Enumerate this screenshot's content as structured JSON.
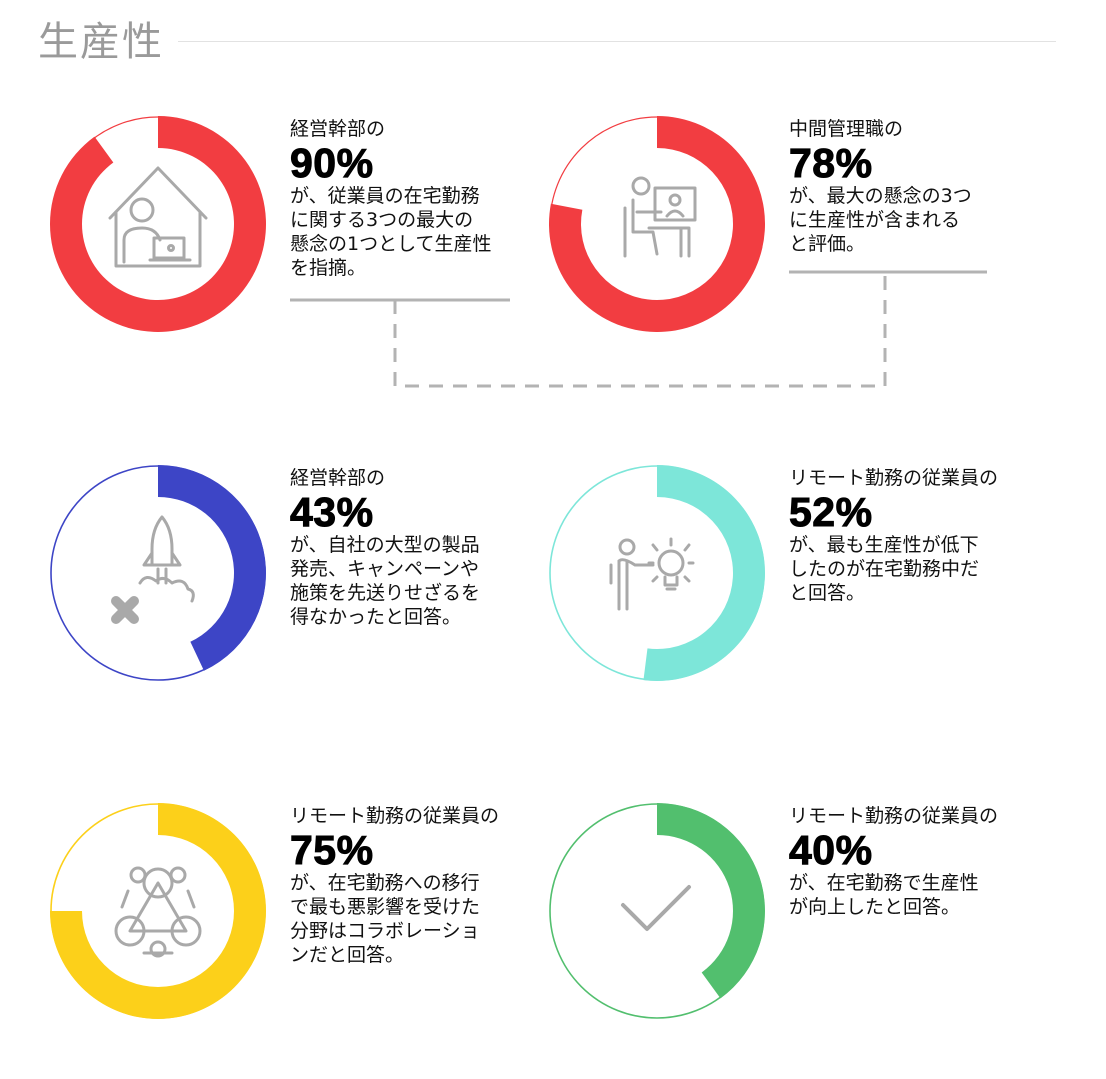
{
  "page": {
    "title": "生産性"
  },
  "chart_data": [
    {
      "type": "pie",
      "value": 90,
      "unit": "%",
      "color": "#f23d41",
      "icon": "person-working-at-home-icon",
      "subject": "経営幹部の",
      "percent_label": "90%",
      "description": [
        "が、従業員の在宅勤務",
        "に関する3つの最大の",
        "懸念の1つとして生産性",
        "を指摘。"
      ]
    },
    {
      "type": "pie",
      "value": 78,
      "unit": "%",
      "color": "#f23d41",
      "icon": "person-at-video-call-desk-icon",
      "subject": "中間管理職の",
      "percent_label": "78%",
      "description": [
        "が、最大の懸念の3つ",
        "に生産性が含まれる",
        "と評価。"
      ]
    },
    {
      "type": "pie",
      "value": 43,
      "unit": "%",
      "color": "#3d45c6",
      "icon": "rocket-launch-cancelled-icon",
      "subject": "経営幹部の",
      "percent_label": "43%",
      "description": [
        "が、自社の大型の製品",
        "発売、キャンペーンや",
        "施策を先送りせざるを",
        "得なかったと回答。"
      ]
    },
    {
      "type": "pie",
      "value": 52,
      "unit": "%",
      "color": "#7de6d9",
      "icon": "person-presenting-idea-icon",
      "subject": "リモート勤務の従業員の",
      "percent_label": "52%",
      "description": [
        "が、最も生産性が低下",
        "したのが在宅勤務中だ",
        "と回答。"
      ]
    },
    {
      "type": "pie",
      "value": 75,
      "unit": "%",
      "color": "#fcd01a",
      "icon": "team-collaboration-icon",
      "subject": "リモート勤務の従業員の",
      "percent_label": "75%",
      "description": [
        "が、在宅勤務への移行",
        "で最も悪影響を受けた",
        "分野はコラボレーショ",
        "ンだと回答。"
      ]
    },
    {
      "type": "pie",
      "value": 40,
      "unit": "%",
      "color": "#52bf6e",
      "icon": "checkmark-icon",
      "subject": "リモート勤務の従業員の",
      "percent_label": "40%",
      "description": [
        "が、在宅勤務で生産性",
        "が向上したと回答。"
      ]
    }
  ]
}
